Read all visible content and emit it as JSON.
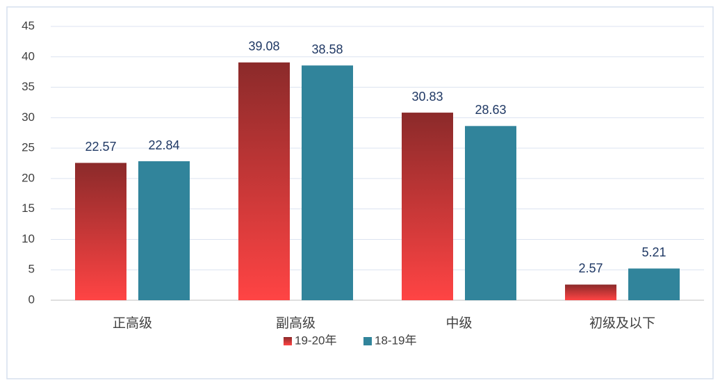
{
  "chart_data": {
    "type": "bar",
    "categories": [
      "正高级",
      "副高级",
      "中级",
      "初级及以下"
    ],
    "series": [
      {
        "name": "19-20年",
        "color": "#ff4444",
        "gradient": [
          "#8b2a2a",
          "#ff4444"
        ],
        "values": [
          22.57,
          39.08,
          30.83,
          2.57
        ]
      },
      {
        "name": "18-19年",
        "color": "#31849b",
        "values": [
          22.84,
          38.58,
          28.63,
          5.21
        ]
      }
    ],
    "ylim": [
      0,
      45
    ],
    "yticks": [
      0,
      5,
      10,
      15,
      20,
      25,
      30,
      35,
      40,
      45
    ],
    "grid": true,
    "legend": "bottom"
  }
}
